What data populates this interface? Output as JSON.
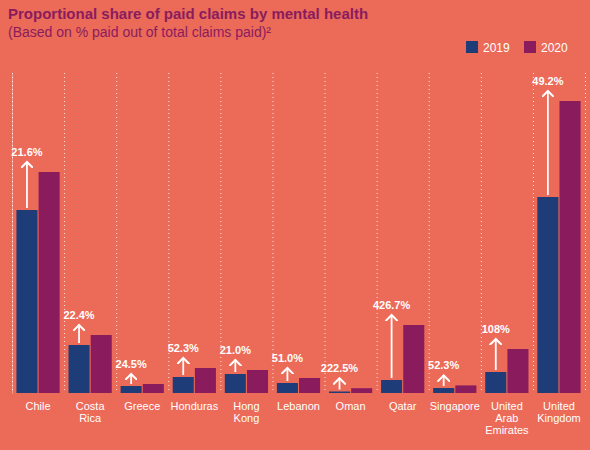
{
  "chart_data": {
    "type": "bar",
    "title": "Proportional share of paid claims by mental health",
    "subtitle": "(Based on % paid out of total claims paid)²",
    "categories": [
      "Chile",
      "Costa Rica",
      "Greece",
      "Honduras",
      "Hong Kong",
      "Lebanon",
      "Oman",
      "Qatar",
      "Singapore",
      "United Arab Emirates",
      "United Kingdom"
    ],
    "series": [
      {
        "name": "2019",
        "color": "#1d3c78",
        "values": [
          183,
          48,
          7,
          16,
          19,
          10,
          1.5,
          13,
          5,
          21,
          196
        ]
      },
      {
        "name": "2020",
        "color": "#8a1c5e",
        "values": [
          221,
          58,
          9,
          25,
          23,
          15,
          4.8,
          68,
          7.6,
          44,
          292
        ]
      }
    ],
    "annotations": [
      "21.6%",
      "22.4%",
      "24.5%",
      "52.3%",
      "21.0%",
      "51.0%",
      "222.5%",
      "426.7%",
      "52.3%",
      "108%",
      "49.2%"
    ],
    "ylim": [
      0,
      320
    ],
    "tick_labels": false,
    "grid": false,
    "legend": "top-right"
  }
}
